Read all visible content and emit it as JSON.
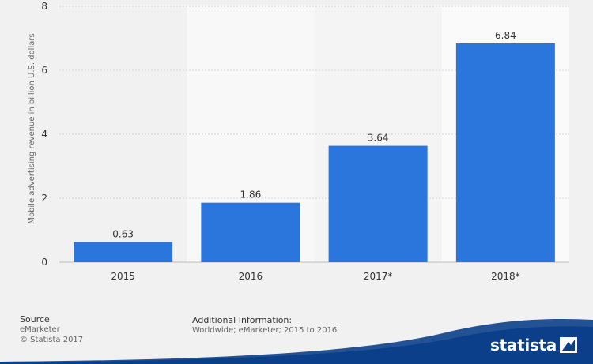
{
  "chart_data": {
    "type": "bar",
    "categories": [
      "2015",
      "2016",
      "2017*",
      "2018*"
    ],
    "values": [
      0.63,
      1.86,
      3.64,
      6.84
    ],
    "value_labels": [
      "0.63",
      "1.86",
      "3.64",
      "6.84"
    ],
    "ylabel": "Mobile advertising revenue in billion U.S. dollars",
    "ylim": [
      0,
      8
    ],
    "yticks": [
      0,
      2,
      4,
      6,
      8
    ],
    "grid": true,
    "bar_color": "#2a76dc"
  },
  "footer": {
    "source_title": "Source",
    "source_name": "eMarketer",
    "copyright": "© Statista 2017",
    "additional_title": "Additional Information:",
    "additional_text": "Worldwide; eMarketer; 2015 to 2016"
  },
  "brand": {
    "name": "statista",
    "color": "#0b3f8a"
  }
}
